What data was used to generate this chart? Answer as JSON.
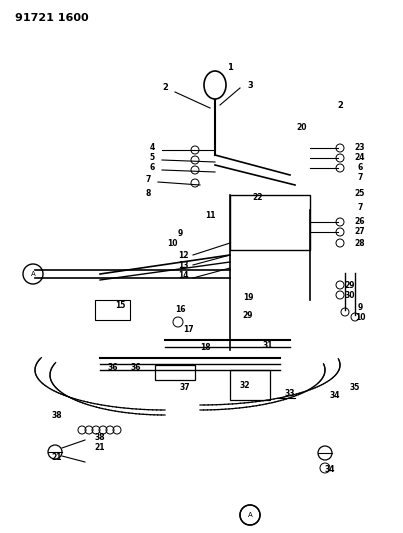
{
  "title": "91721 1600",
  "bg_color": "#ffffff",
  "line_color": "#000000",
  "fig_width": 4.03,
  "fig_height": 5.33,
  "dpi": 100
}
